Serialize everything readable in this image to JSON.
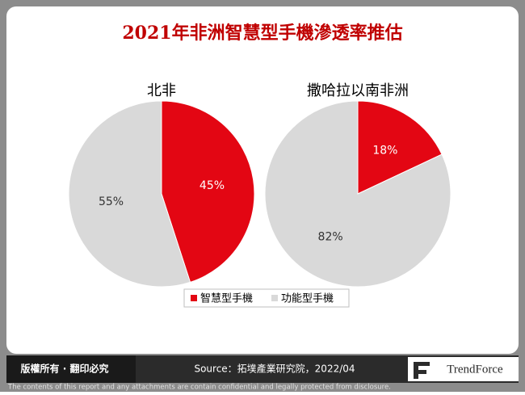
{
  "header": {
    "title": "2021年非洲智慧型手機滲透率推估"
  },
  "chart_data": [
    {
      "type": "pie",
      "title": "北非",
      "categories": [
        "智慧型手機",
        "功能型手機"
      ],
      "values": [
        45,
        55
      ],
      "value_labels": [
        "45%",
        "55%"
      ],
      "colors": [
        "#e30613",
        "#d9d9d9"
      ]
    },
    {
      "type": "pie",
      "title": "撒哈拉以南非洲",
      "categories": [
        "智慧型手機",
        "功能型手機"
      ],
      "values": [
        18,
        82
      ],
      "value_labels": [
        "18%",
        "82%"
      ],
      "colors": [
        "#e30613",
        "#d9d9d9"
      ]
    }
  ],
  "footer": {
    "rights": "版權所有 · 翻印必究",
    "source": "Source：拓墣產業研究院，2022/04",
    "logo": "TrendForce",
    "disclaimer": "The contents of this report and any attachments are contain confidential and legally protected from disclosure."
  }
}
